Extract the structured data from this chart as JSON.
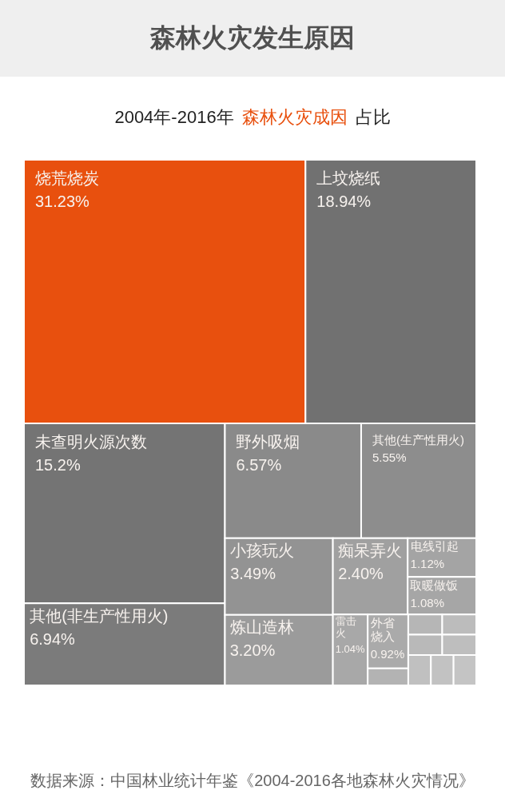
{
  "chart_data": {
    "type": "other",
    "title": "森林火灾发生原因",
    "subtitle": "2004年-2016年 森林火灾成因 占比",
    "categories": [
      "烧荒烧炭",
      "上坟烧纸",
      "未查明火源次数",
      "其他(非生产性用火)",
      "野外吸烟",
      "其他(生产性用火)",
      "小孩玩火",
      "炼山造林",
      "痴呆弄火",
      "电线引起",
      "取暖做饭",
      "雷击火",
      "外省烧入",
      null,
      null,
      null,
      null,
      null,
      null,
      null,
      null
    ],
    "values": [
      31.23,
      18.94,
      15.2,
      6.94,
      6.57,
      5.55,
      3.49,
      3.2,
      2.4,
      1.12,
      1.08,
      1.04,
      0.92,
      null,
      null,
      null,
      null,
      null,
      null,
      null,
      null
    ],
    "value_labels": [
      "31.23%",
      "18.94%",
      "15.2%",
      "6.94%",
      "6.57%",
      "5.55%",
      "3.49%",
      "3.20%",
      "2.40%",
      "1.12%",
      "1.08%",
      "1.04%",
      "0.92%",
      null,
      null,
      null,
      null,
      null,
      null,
      null,
      null
    ],
    "colors": [
      "#e8500e",
      "#717171",
      "#747474",
      "#7b7b7b",
      "#8a8a8a",
      "#8d8d8d",
      "#939393",
      "#9b9b9b",
      "#a0a0a0",
      "#a4a4a4",
      "#a6a6a6",
      "#a8a8a8",
      "#aaaaaa",
      "#b3b3b3",
      "#b6b6b6",
      "#b9b9b9",
      "#bcbcbc",
      "#bebebe",
      "#c0c0c0",
      "#c2c2c2",
      "#c4c4c4"
    ],
    "annotations": [
      "数据来源：中国林业统计年鉴《2004-2016各地森林火灾情况》"
    ]
  }
}
